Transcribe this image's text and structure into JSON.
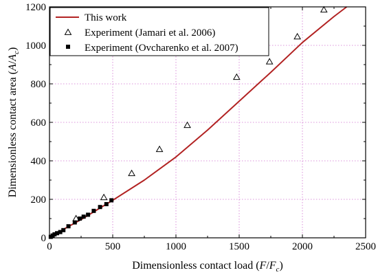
{
  "chart_data": {
    "type": "scatter",
    "xlabel": "Dimensionless contact load (F/F_c)",
    "ylabel": "Dimensionless contact area (A/A_c)",
    "xlabel_parts": {
      "prefix": "Dimensionless contact load (",
      "var": "F",
      "sep": "/",
      "var2": "F",
      "sub": "c",
      "suffix": ")"
    },
    "ylabel_parts": {
      "prefix": "Dimensionless contact area (",
      "var": "A",
      "sep": "/",
      "var2": "A",
      "sub": "c",
      "suffix": ")"
    },
    "xlim": [
      0,
      2500
    ],
    "ylim": [
      0,
      1200
    ],
    "xticks": [
      0,
      500,
      1000,
      1500,
      2000,
      2500
    ],
    "yticks": [
      0,
      200,
      400,
      600,
      800,
      1000,
      1200
    ],
    "grid": true,
    "legend_position": "top-left",
    "series": [
      {
        "name": "This work",
        "kind": "line",
        "color": "#b22222",
        "x": [
          0,
          100,
          250,
          500,
          750,
          1000,
          1250,
          1500,
          1750,
          2000,
          2250,
          2350
        ],
        "y": [
          0,
          40,
          95,
          195,
          300,
          420,
          560,
          710,
          860,
          1015,
          1150,
          1200
        ]
      },
      {
        "name": "Experiment (Jamari et al. 2006)",
        "kind": "marker",
        "marker": "triangle-open",
        "color": "#000000",
        "x": [
          210,
          430,
          650,
          870,
          1090,
          1480,
          1740,
          1960,
          2170
        ],
        "y": [
          100,
          210,
          335,
          460,
          585,
          835,
          915,
          1045,
          1185
        ]
      },
      {
        "name": "Experiment (Ovcharenko et al. 2007)",
        "kind": "marker",
        "marker": "square-filled",
        "color": "#000000",
        "x": [
          10,
          25,
          40,
          60,
          85,
          110,
          150,
          200,
          240,
          270,
          305,
          350,
          400,
          450,
          490
        ],
        "y": [
          5,
          12,
          18,
          24,
          30,
          40,
          60,
          80,
          100,
          110,
          120,
          140,
          160,
          175,
          195
        ]
      }
    ]
  }
}
